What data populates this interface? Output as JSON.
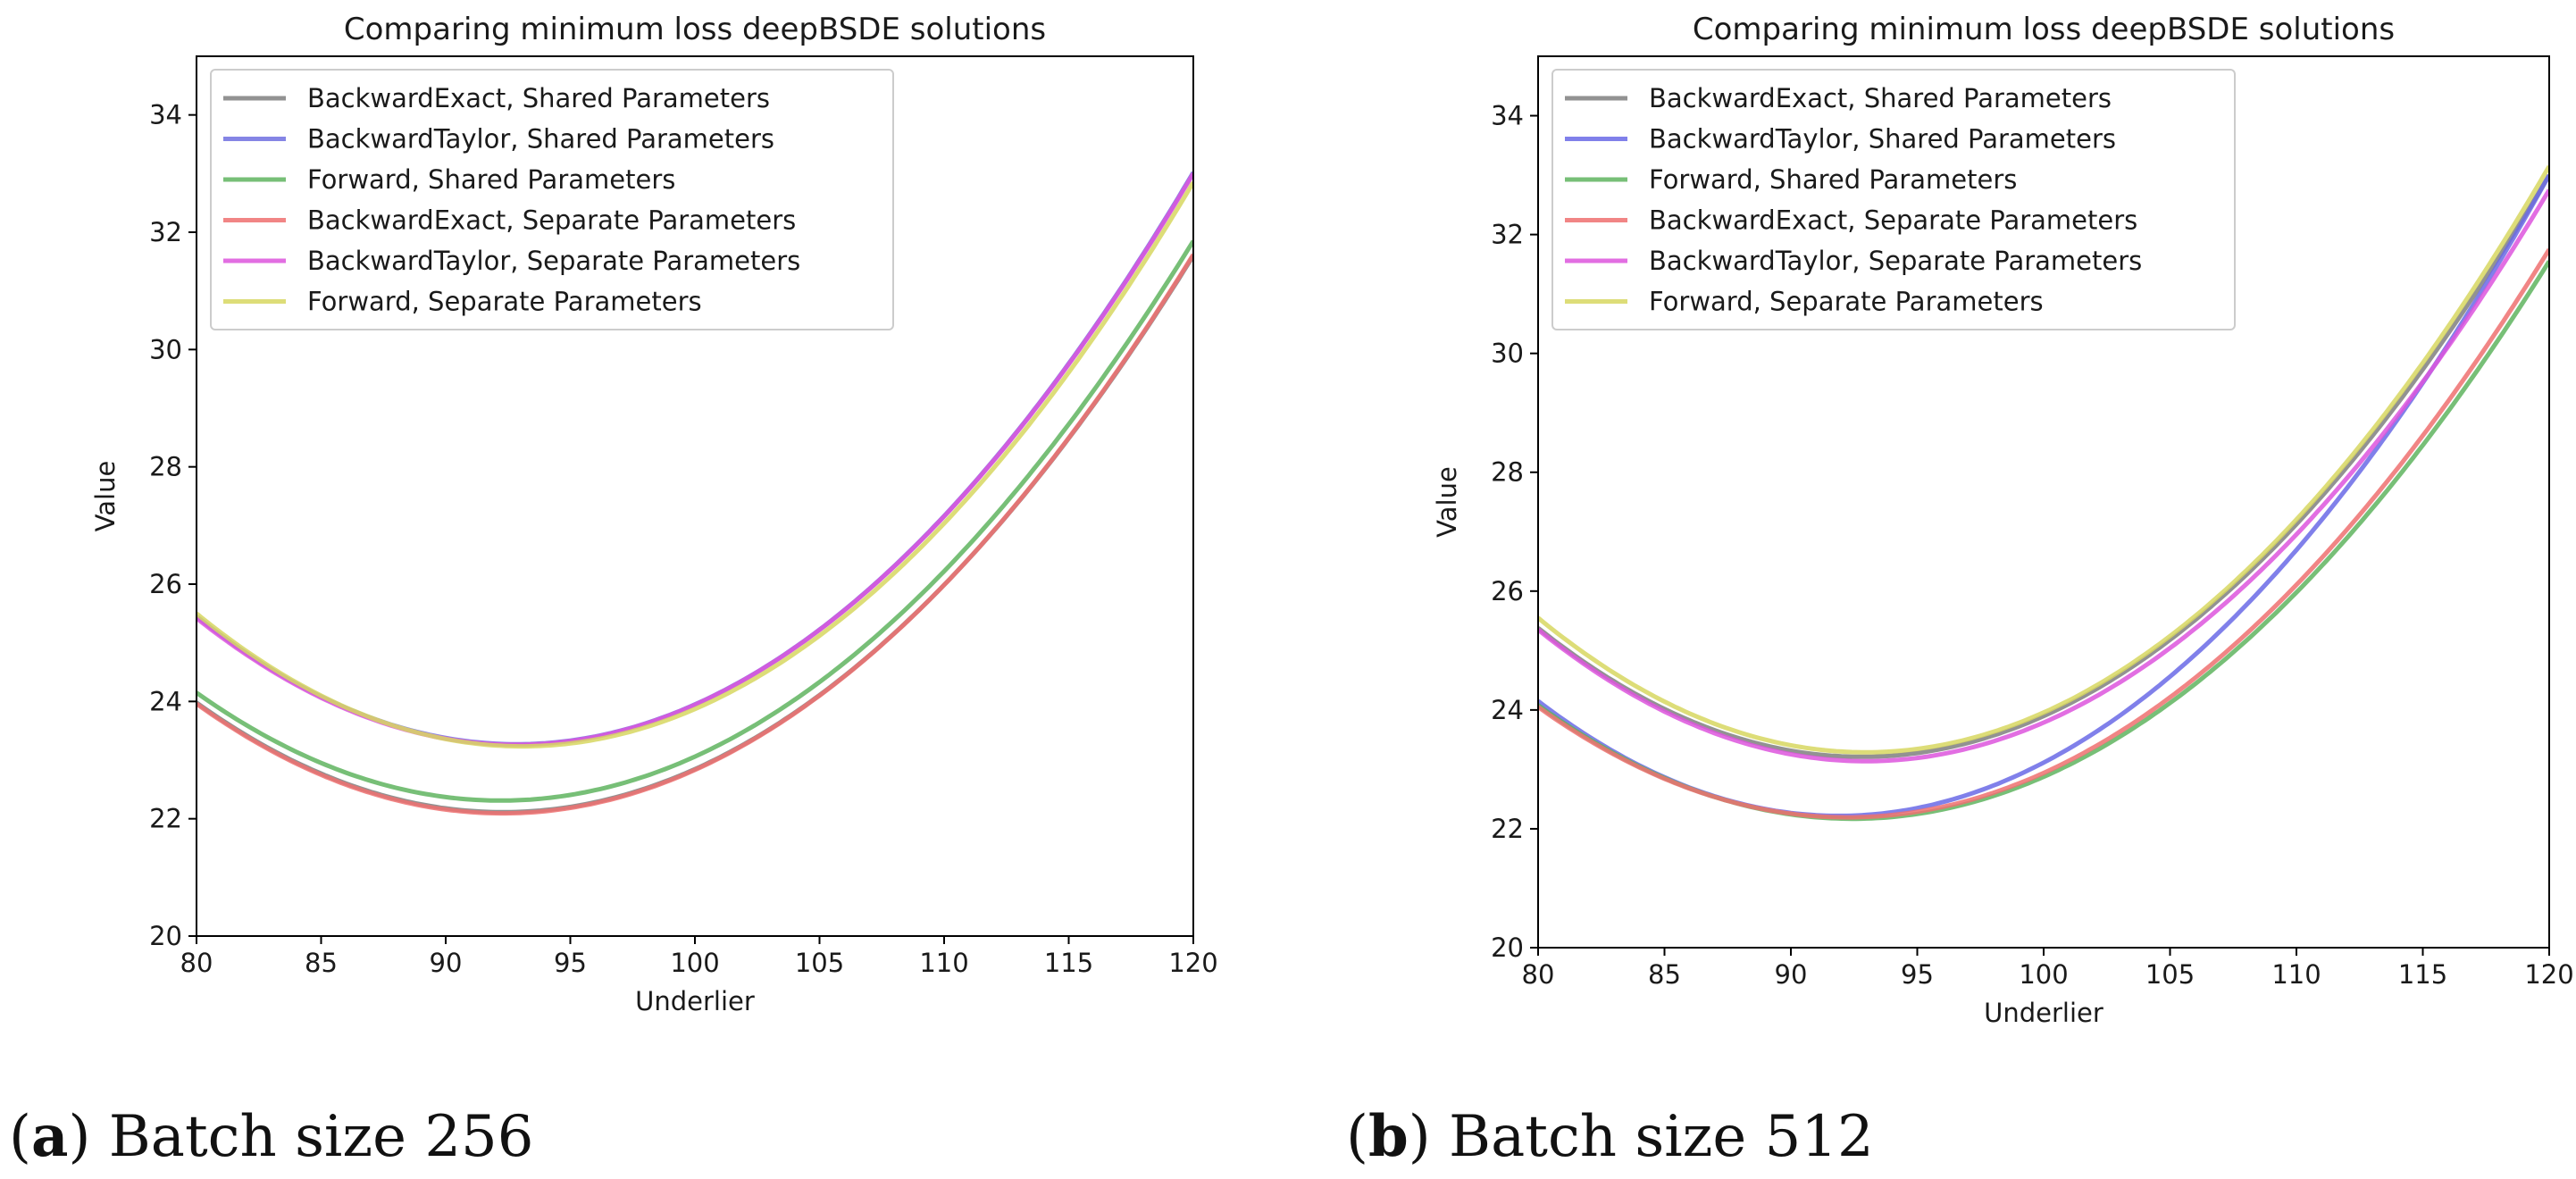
{
  "figure": {
    "captions": [
      {
        "letter": "a",
        "text": " Batch size 256"
      },
      {
        "letter": "b",
        "text": " Batch size 512"
      }
    ]
  },
  "chart_data": [
    {
      "type": "line",
      "title": "Comparing minimum loss deepBSDE solutions",
      "xlabel": "Underlier",
      "ylabel": "Value",
      "xlim": [
        80,
        120
      ],
      "ylim": [
        20,
        35
      ],
      "xticks": [
        80,
        85,
        90,
        95,
        100,
        105,
        110,
        115,
        120
      ],
      "yticks": [
        20,
        22,
        24,
        26,
        28,
        30,
        32,
        34
      ],
      "legend_position": "upper-left",
      "series": [
        {
          "name": "BackwardExact, Shared Parameters",
          "color": "#7f7f7f",
          "points": [
            [
              80,
              23.98
            ],
            [
              91.5,
              22.12
            ],
            [
              120,
              31.6
            ]
          ]
        },
        {
          "name": "BackwardTaylor, Shared Parameters",
          "color": "#7070e0",
          "points": [
            [
              80,
              25.45
            ],
            [
              92,
              23.28
            ],
            [
              120,
              33.02
            ]
          ]
        },
        {
          "name": "Forward, Shared Parameters",
          "color": "#5fb45f",
          "points": [
            [
              80,
              24.15
            ],
            [
              91.3,
              22.32
            ],
            [
              120,
              31.85
            ]
          ]
        },
        {
          "name": "BackwardExact, Separate Parameters",
          "color": "#ee7070",
          "points": [
            [
              80,
              23.96
            ],
            [
              91.5,
              22.1
            ],
            [
              120,
              31.62
            ]
          ]
        },
        {
          "name": "BackwardTaylor, Separate Parameters",
          "color": "#dd55dd",
          "points": [
            [
              80,
              25.42
            ],
            [
              92,
              23.27
            ],
            [
              120,
              33.0
            ]
          ]
        },
        {
          "name": "Forward, Separate Parameters",
          "color": "#d7d760",
          "points": [
            [
              80,
              25.5
            ],
            [
              92,
              23.25
            ],
            [
              120,
              32.85
            ]
          ]
        }
      ]
    },
    {
      "type": "line",
      "title": "Comparing minimum loss deepBSDE solutions",
      "xlabel": "Underlier",
      "ylabel": "Value",
      "xlim": [
        80,
        120
      ],
      "ylim": [
        20,
        35
      ],
      "xticks": [
        80,
        85,
        90,
        95,
        100,
        105,
        110,
        115,
        120
      ],
      "yticks": [
        20,
        22,
        24,
        26,
        28,
        30,
        32,
        34
      ],
      "legend_position": "upper-left",
      "series": [
        {
          "name": "BackwardExact, Shared Parameters",
          "color": "#7f7f7f",
          "points": [
            [
              80,
              25.38
            ],
            [
              92,
              23.22
            ],
            [
              120,
              33.0
            ]
          ]
        },
        {
          "name": "BackwardTaylor, Shared Parameters",
          "color": "#6a6ae6",
          "points": [
            [
              80,
              24.15
            ],
            [
              91.5,
              22.22
            ],
            [
              120,
              33.0
            ]
          ]
        },
        {
          "name": "Forward, Shared Parameters",
          "color": "#5fb45f",
          "points": [
            [
              80,
              24.08
            ],
            [
              91.5,
              22.18
            ],
            [
              120,
              31.55
            ]
          ]
        },
        {
          "name": "BackwardExact, Separate Parameters",
          "color": "#ee7070",
          "points": [
            [
              80,
              24.05
            ],
            [
              91.5,
              22.2
            ],
            [
              120,
              31.75
            ]
          ]
        },
        {
          "name": "BackwardTaylor, Separate Parameters",
          "color": "#dd55dd",
          "points": [
            [
              80,
              25.35
            ],
            [
              92,
              23.15
            ],
            [
              120,
              32.75
            ]
          ]
        },
        {
          "name": "Forward, Separate Parameters",
          "color": "#d7d760",
          "points": [
            [
              80,
              25.55
            ],
            [
              92,
              23.3
            ],
            [
              120,
              33.15
            ]
          ]
        }
      ]
    }
  ]
}
